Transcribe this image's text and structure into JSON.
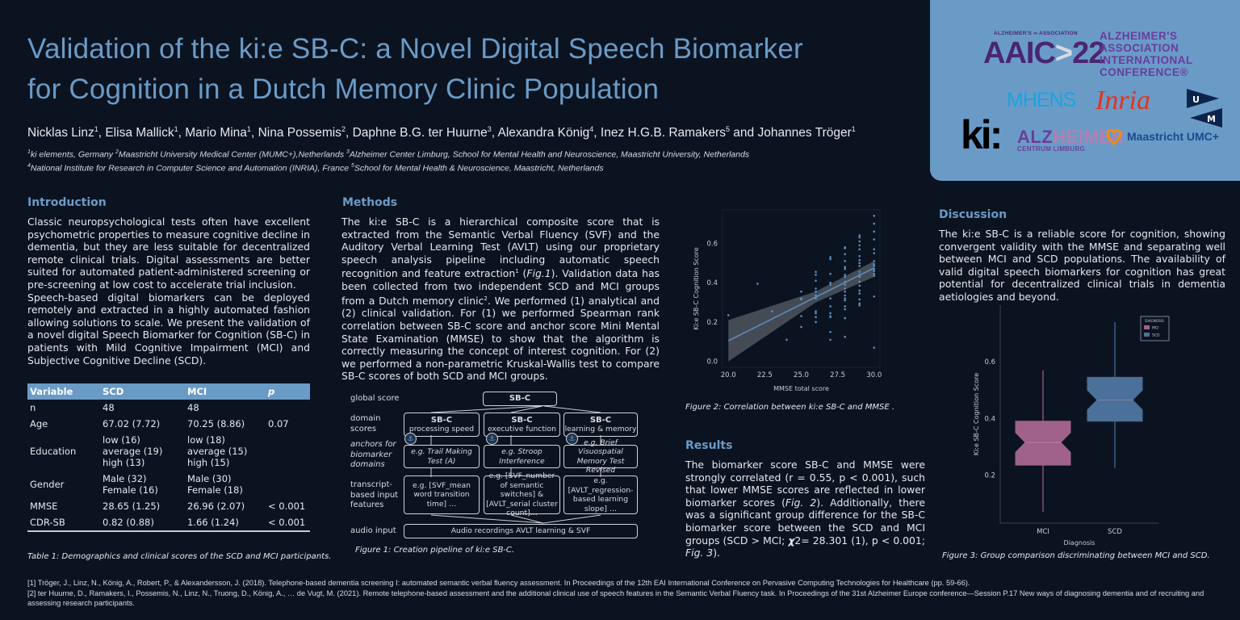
{
  "header": {
    "title_line1": "Validation of the ki:e SB-C: a Novel Digital Speech Biomarker",
    "title_line2": "for Cognition in a Dutch Memory Clinic Population",
    "authors": [
      {
        "name": "Nicklas Linz",
        "sup": "1"
      },
      {
        "name": "Elisa Mallick",
        "sup": "1"
      },
      {
        "name": "Mario Mina",
        "sup": "1"
      },
      {
        "name": "Nina Possemis",
        "sup": "2"
      },
      {
        "name": "Daphne B.G. ter Huurne",
        "sup": "3"
      },
      {
        "name": "Alexandra König",
        "sup": "4"
      },
      {
        "name": "Inez H.G.B. Ramakers",
        "sup": "5"
      },
      {
        "name": "Johannes Tröger",
        "sup": "1"
      }
    ],
    "affiliations_line1": [
      {
        "sup": "1",
        "text": "ki elements, Germany "
      },
      {
        "sup": "2",
        "text": "Maastricht University Medical Center (MUMC+),Netherlands "
      },
      {
        "sup": "3",
        "text": "Alzheimer Center Limburg, School for Mental Health and Neuroscience, Maastricht University, Netherlands"
      }
    ],
    "affiliations_line2": [
      {
        "sup": "4",
        "text": "National Institute for Research in Computer Science and Automation (INRIA), France  "
      },
      {
        "sup": "5",
        "text": "School for Mental Health & Neuroscience, Maastricht, Netherlands"
      }
    ]
  },
  "logos": {
    "aaic_top": "ALZHEIMER'S ∞ ASSOCIATION",
    "aaic_main_a": "AAIC",
    "aaic_main_chev": ">",
    "aaic_main_b": "22",
    "aaic_text": [
      "ALZHEIMER'S",
      "ASSOCIATION",
      "INTERNATIONAL",
      "CONFERENCE®"
    ],
    "mhens": "MHENS",
    "inria": "Inria",
    "um_u": "U",
    "um_m": "M",
    "ki": "ki:",
    "alz_big_a": "ALZ",
    "alz_big_b": "HEIMER",
    "alz_small": "CENTRUM LIMBURG",
    "mumc": "Maastricht UMC+"
  },
  "introduction": {
    "heading": "Introduction",
    "para1": "Classic neuropsychological tests often have excellent psychometric properties to measure cognitive decline in dementia, but they are less suitable for decentralized remote clinical trials. Digital assessments are better suited for automated patient-administered screening or pre-screening at low cost to accelerate trial inclusion.",
    "para2": "Speech-based digital biomarkers can be deployed remotely and extracted in a highly automated fashion allowing solutions to scale. We present the validation of a novel digital Speech Biomarker for Cognition (SB-C) in patients with Mild Cognitive Impairment (MCI) and Subjective Cognitive Decline (SCD)."
  },
  "table1": {
    "headers": [
      "Variable",
      "SCD",
      "MCI",
      "p"
    ],
    "rows": [
      {
        "var": "n",
        "scd": [
          "48"
        ],
        "mci": [
          "48"
        ],
        "p": ""
      },
      {
        "var": "Age",
        "scd": [
          "67.02 (7.72)"
        ],
        "mci": [
          "70.25 (8.86)"
        ],
        "p": "0.07"
      },
      {
        "var": "Education",
        "scd": [
          "low (16)",
          "average (19)",
          "high (13)"
        ],
        "mci": [
          "low (18)",
          "average (15)",
          "high (15)"
        ],
        "p": ""
      },
      {
        "var": "Gender",
        "scd": [
          "Male (32)",
          "Female (16)"
        ],
        "mci": [
          "Male (30)",
          "Female (18)"
        ],
        "p": ""
      },
      {
        "var": "MMSE",
        "scd": [
          "28.65 (1.25)"
        ],
        "mci": [
          "26.96 (2.07)"
        ],
        "p": "< 0.001"
      },
      {
        "var": "CDR-SB",
        "scd": [
          "0.82 (0.88)"
        ],
        "mci": [
          "1.66 (1.24)"
        ],
        "p": "< 0.001"
      }
    ],
    "caption": "Table 1: Demographics and clinical scores of the SCD and MCI participants."
  },
  "methods": {
    "heading": "Methods",
    "text_a": "The ki:e SB-C is a hierarchical composite score that is  extracted from the Semantic Verbal Fluency (SVF) and the Auditory Verbal Learning Test (AVLT) using our proprietary speech analysis pipeline including automatic speech recognition and feature extraction",
    "sup_a": "1",
    "text_b": " (",
    "fig_ref": "Fig.1",
    "text_c": "). Validation data has been collected from two independent SCD and MCI groups from a Dutch memory clinic",
    "sup_b": "2",
    "text_d": ". We performed (1) analytical and (2) clinical validation. For (1) we performed Spearman rank correlation between SB-C score and anchor score Mini Mental State Examination (MMSE) to show that the algorithm is correctly measuring the concept of interest cognition. For (2) we performed a non-parametric Kruskal-Wallis test to compare SB-C scores of both SCD and MCI groups."
  },
  "figure1": {
    "row_labels": {
      "global": "global score",
      "domain": [
        "domain",
        "scores"
      ],
      "anchors": [
        "anchors for",
        "biomarker",
        "domains"
      ],
      "features": [
        "transcript-",
        "based input",
        "features"
      ],
      "audio": "audio input"
    },
    "global_box": "SB-C",
    "domains": [
      {
        "title": "SB-C",
        "sub": "processing speed",
        "anchor": "e.g. Trail Making Test (A)",
        "features": "e.g. [SVF_mean word transition time] …"
      },
      {
        "title": "SB-C",
        "sub": "executive function",
        "anchor": "e.g. Stroop Interference",
        "features": "e.g. [SVF_number of semantic switches] & [AVLT_serial cluster count]…"
      },
      {
        "title": "SB-C",
        "sub": "learning & memory",
        "anchor": "e.g. Brief Visuospatial Memory Test Revised",
        "features": "e.g. [AVLT_regression-based learning slope] …"
      }
    ],
    "audio_box": "Audio recordings AVLT learning & SVF",
    "caption": "Figure 1: Creation pipeline of ki:e SB-C."
  },
  "results": {
    "heading": "Results",
    "text_a": "The biomarker score SB-C and MMSE were strongly correlated (r = 0.55, p < 0.001), such that lower MMSE scores are reflected in lower biomarker scores (",
    "fig2_ref": "Fig. 2",
    "text_b": "). Additionally, there was a significant group difference for the SB-C biomarker score between the SCD and MCI groups (SCD > MCI; ",
    "chi": "χ",
    "text_c": "2= 28.301 (1), p < 0.001; ",
    "fig3_ref": "Fig. 3",
    "text_d": ")."
  },
  "discussion": {
    "heading": "Discussion",
    "text": "The ki:e SB-C is a reliable score for cognition, showing convergent validity with the MMSE and separating well between MCI and SCD populations. The availability of valid digital speech biomarkers for cognition has great potential for decentralized clinical trials in dementia aetiologies and beyond."
  },
  "chart_data": [
    {
      "type": "scatter",
      "title": "Figure 2:  Correlation between ki:e SB-C and MMSE .",
      "xlabel": "MMSE total score",
      "ylabel": "Ki:e SB-C Cognition Score",
      "xlim": [
        19.6,
        30.4
      ],
      "ylim": [
        -0.03,
        0.77
      ],
      "xticks": [
        "20.0",
        "22.5",
        "25.0",
        "27.5",
        "30.0"
      ],
      "yticks": [
        "0.0",
        "0.2",
        "0.4",
        "0.6"
      ],
      "grid": false,
      "regression": {
        "x": [
          20,
          30
        ],
        "y": [
          0.105,
          0.475
        ],
        "ci_low": [
          0.0,
          0.43
        ],
        "ci_high": [
          0.21,
          0.51
        ],
        "r": 0.55
      },
      "points": [
        [
          20,
          0.235
        ],
        [
          22,
          0.395
        ],
        [
          23,
          0.255
        ],
        [
          24,
          0.11
        ],
        [
          25,
          0.355
        ],
        [
          25,
          0.32
        ],
        [
          25,
          0.315
        ],
        [
          25,
          0.23
        ],
        [
          25,
          0.175
        ],
        [
          26,
          0.455
        ],
        [
          26,
          0.44
        ],
        [
          26,
          0.41
        ],
        [
          26,
          0.37
        ],
        [
          26,
          0.355
        ],
        [
          26,
          0.335
        ],
        [
          26,
          0.32
        ],
        [
          26,
          0.255
        ],
        [
          26,
          0.245
        ],
        [
          26,
          0.225
        ],
        [
          26,
          0.2
        ],
        [
          27,
          0.53
        ],
        [
          27,
          0.52
        ],
        [
          27,
          0.445
        ],
        [
          27,
          0.4
        ],
        [
          27,
          0.39
        ],
        [
          27,
          0.32
        ],
        [
          27,
          0.28
        ],
        [
          27,
          0.245
        ],
        [
          27,
          0.23
        ],
        [
          27,
          0.225
        ],
        [
          27,
          0.15
        ],
        [
          27,
          0.11
        ],
        [
          28,
          0.58
        ],
        [
          28,
          0.575
        ],
        [
          28,
          0.545
        ],
        [
          28,
          0.51
        ],
        [
          28,
          0.48
        ],
        [
          28,
          0.47
        ],
        [
          28,
          0.44
        ],
        [
          28,
          0.43
        ],
        [
          28,
          0.405
        ],
        [
          28,
          0.39
        ],
        [
          28,
          0.37
        ],
        [
          28,
          0.355
        ],
        [
          28,
          0.335
        ],
        [
          28,
          0.32
        ],
        [
          28,
          0.31
        ],
        [
          28,
          0.28
        ],
        [
          28,
          0.265
        ],
        [
          28,
          0.22
        ],
        [
          28,
          0.125
        ],
        [
          29,
          0.64
        ],
        [
          29,
          0.63
        ],
        [
          29,
          0.61
        ],
        [
          29,
          0.59
        ],
        [
          29,
          0.57
        ],
        [
          29,
          0.535
        ],
        [
          29,
          0.515
        ],
        [
          29,
          0.5
        ],
        [
          29,
          0.485
        ],
        [
          29,
          0.455
        ],
        [
          29,
          0.44
        ],
        [
          29,
          0.43
        ],
        [
          29,
          0.405
        ],
        [
          29,
          0.385
        ],
        [
          29,
          0.36
        ],
        [
          29,
          0.345
        ],
        [
          29,
          0.315
        ],
        [
          29,
          0.295
        ],
        [
          29,
          0.285
        ],
        [
          30,
          0.74
        ],
        [
          30,
          0.7
        ],
        [
          30,
          0.66
        ],
        [
          30,
          0.62
        ],
        [
          30,
          0.57
        ],
        [
          30,
          0.55
        ],
        [
          30,
          0.51
        ],
        [
          30,
          0.495
        ],
        [
          30,
          0.485
        ],
        [
          30,
          0.47
        ],
        [
          30,
          0.46
        ],
        [
          30,
          0.445
        ],
        [
          30,
          0.435
        ],
        [
          30,
          0.33
        ],
        [
          30,
          0.07
        ]
      ],
      "color": "#5b8fc4"
    },
    {
      "type": "box",
      "title": "Figure 3:  Group comparison discriminating between MCI and SCD.",
      "xlabel": "Diagnosis",
      "ylabel": "Ki:e SB-C Cognition Score",
      "categories": [
        "MCI",
        "SCD"
      ],
      "yticks": [
        "0.2",
        "0.4",
        "0.6"
      ],
      "ylim": [
        0.03,
        0.8
      ],
      "legend": {
        "title": "DIAGNOSIS",
        "entries": [
          "MCI",
          "SCD"
        ],
        "position": "upper right"
      },
      "series": [
        {
          "name": "MCI",
          "color": "#a0628a",
          "whisker_low": 0.07,
          "q1": 0.235,
          "notch_low": 0.28,
          "median": 0.315,
          "notch_high": 0.35,
          "q3": 0.39,
          "whisker_high": 0.57
        },
        {
          "name": "SCD",
          "color": "#4b7099",
          "whisker_low": 0.225,
          "q1": 0.39,
          "notch_low": 0.43,
          "median": 0.465,
          "notch_high": 0.5,
          "q3": 0.545,
          "whisker_high": 0.74
        }
      ]
    }
  ],
  "references": [
    "[1] Tröger, J., Linz, N., König, A., Robert, P., & Alexandersson, J. (2018). Telephone-based dementia screening I: automated semantic verbal fluency assessment. In Proceedings of the 12th EAI International Conference on Pervasive Computing Technologies for Healthcare (pp. 59-66).",
    "[2] ter Huurne, D., Ramakers, I., Possemis, N., Linz, N., Truong, D., König, A., … de Vugt, M. (2021). Remote telephone-based assessment and the additional clinical use of speech features in the Semantic Verbal Fluency task. In Proceedings of the 31st Alzheimer Europe conference—Session P.17 New ways of diagnosing dementia and of recruiting and assessing research participants."
  ]
}
